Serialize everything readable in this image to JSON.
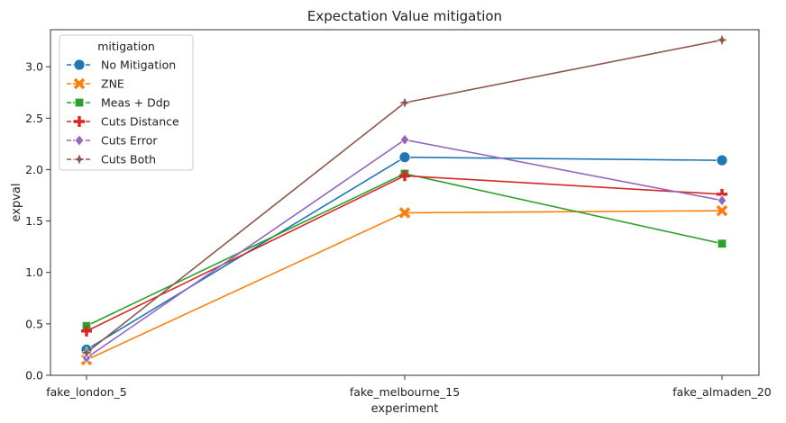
{
  "chart_data": {
    "type": "line",
    "title": "Expectation Value mitigation",
    "xlabel": "experiment",
    "ylabel": "expval",
    "categories": [
      "fake_london_5",
      "fake_melbourne_15",
      "fake_almaden_20"
    ],
    "ylim": [
      0,
      3.36
    ],
    "yticks": [
      "0.0",
      "0.5",
      "1.0",
      "1.5",
      "2.0",
      "2.5",
      "3.0"
    ],
    "grid": false,
    "legend": {
      "title": "mitigation",
      "placement": "top-left"
    },
    "series": [
      {
        "name": "No Mitigation",
        "color": "#1f77b4",
        "marker": "circle",
        "values": [
          0.25,
          2.12,
          2.09
        ]
      },
      {
        "name": "ZNE",
        "color": "#ff7f0e",
        "marker": "x",
        "values": [
          0.15,
          1.58,
          1.6
        ]
      },
      {
        "name": "Meas + Ddp",
        "color": "#2ca02c",
        "marker": "square",
        "values": [
          0.48,
          1.96,
          1.28
        ]
      },
      {
        "name": "Cuts Distance",
        "color": "#d62728",
        "marker": "plus",
        "values": [
          0.43,
          1.94,
          1.76
        ]
      },
      {
        "name": "Cuts Error",
        "color": "#9467bd",
        "marker": "diamond",
        "values": [
          0.17,
          2.29,
          1.7
        ]
      },
      {
        "name": "Cuts Both",
        "color": "#8c564b",
        "marker": "star4",
        "values": [
          0.22,
          2.65,
          3.26
        ]
      }
    ]
  }
}
